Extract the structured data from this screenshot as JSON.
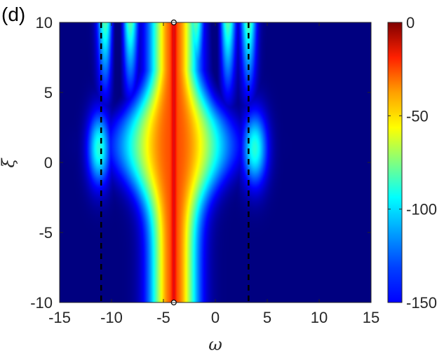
{
  "panel_label": "(d)",
  "chart_data": {
    "type": "heatmap",
    "title": "",
    "xlabel": "ω",
    "ylabel": "ξ",
    "xlim": [
      -15,
      15
    ],
    "ylim": [
      -10,
      10
    ],
    "xticks": [
      {
        "value": -15,
        "label": "-15"
      },
      {
        "value": -10,
        "label": "-10"
      },
      {
        "value": -5,
        "label": "-5"
      },
      {
        "value": 0,
        "label": "0"
      },
      {
        "value": 5,
        "label": "5"
      },
      {
        "value": 10,
        "label": "10"
      },
      {
        "value": 15,
        "label": "15"
      }
    ],
    "yticks": [
      {
        "value": -10,
        "label": "-10"
      },
      {
        "value": -5,
        "label": "-5"
      },
      {
        "value": 0,
        "label": "0"
      },
      {
        "value": 5,
        "label": "5"
      },
      {
        "value": 10,
        "label": "10"
      }
    ],
    "colorbar": {
      "colormap": "jet",
      "range": [
        -150,
        0
      ],
      "ticks": [
        {
          "value": 0,
          "label": "0"
        },
        {
          "value": -50,
          "label": "-50"
        },
        {
          "value": -100,
          "label": "-100"
        },
        {
          "value": -150,
          "label": "-150"
        }
      ]
    },
    "background_value": -150,
    "central_line": {
      "omega": -4,
      "value": -20,
      "endpoint_markers": [
        [
          -4,
          -10
        ],
        [
          -4,
          10
        ]
      ]
    },
    "dashed_lines_omega": [
      -11,
      3.2
    ],
    "grid": false
  }
}
